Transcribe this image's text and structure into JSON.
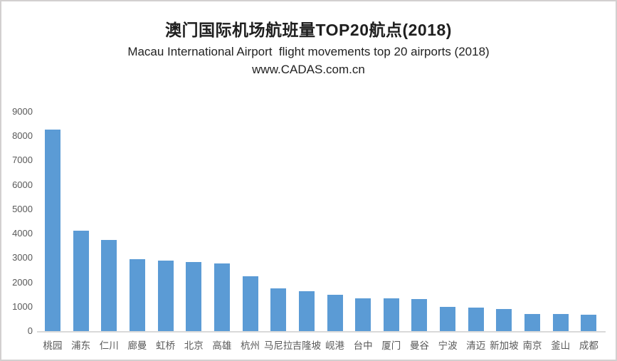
{
  "header": {
    "title": "澳门国际机场航班量TOP20航点(2018)",
    "subtitle": "Macau International Airport  flight movements top 20 airports (2018)",
    "website": "www.CADAS.com.cn"
  },
  "colors": {
    "bar": "#5B9BD5",
    "axis_line": "#D9D9D9",
    "tick_text": "#595959",
    "frame_border": "#D2D0D0"
  },
  "chart_data": {
    "type": "bar",
    "title": "澳门国际机场航班量TOP20航点(2018)",
    "subtitle": "Macau International Airport  flight movements top 20 airports (2018)",
    "annotation": "www.CADAS.com.cn",
    "categories": [
      "桃园",
      "浦东",
      "仁川",
      "廊曼",
      "虹桥",
      "北京",
      "高雄",
      "杭州",
      "马尼拉",
      "吉隆坡",
      "岘港",
      "台中",
      "厦门",
      "曼谷",
      "宁波",
      "清迈",
      "新加坡",
      "南京",
      "釜山",
      "成都"
    ],
    "values": [
      8280,
      4120,
      3730,
      2950,
      2880,
      2830,
      2780,
      2250,
      1750,
      1630,
      1480,
      1350,
      1330,
      1320,
      1000,
      950,
      900,
      700,
      690,
      680
    ],
    "xlabel": "",
    "ylabel": "",
    "ylim": [
      0,
      9000
    ],
    "yticks": [
      0,
      1000,
      2000,
      3000,
      4000,
      5000,
      6000,
      7000,
      8000,
      9000
    ],
    "grid": false,
    "legend": false,
    "bar_color": "#5B9BD5"
  }
}
